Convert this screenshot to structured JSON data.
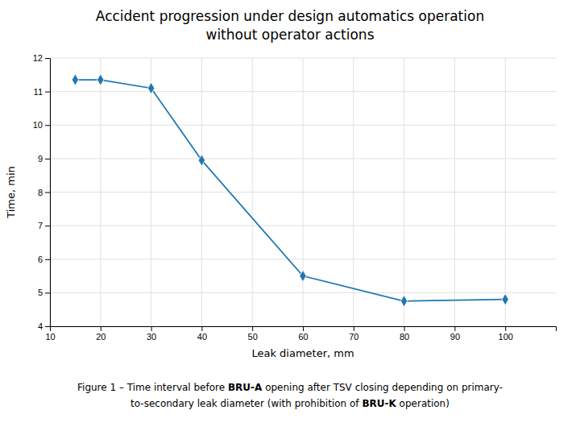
{
  "chart_data": {
    "type": "line",
    "title": "Accident progression under design automatics operation",
    "subtitle": "without operator actions",
    "x": [
      15,
      20,
      30,
      40,
      60,
      80,
      100
    ],
    "values": [
      11.35,
      11.35,
      11.1,
      8.95,
      5.5,
      4.75,
      4.8
    ],
    "x_label": "Leak diameter, mm",
    "y_label": "Time, min",
    "xlim": [
      10,
      110
    ],
    "ylim": [
      4,
      12
    ],
    "xticks": [
      10,
      20,
      30,
      40,
      50,
      60,
      70,
      80,
      90,
      100
    ],
    "yticks": [
      4,
      5,
      6,
      7,
      8,
      9,
      10,
      11,
      12
    ],
    "marker": "diamond",
    "grid": true,
    "annotations": [
      [
        "Figure 1 – Time interval before ",
        "BRU‑A",
        " opening after TSV closing depending on primary-"
      ],
      [
        "to-secondary leak diameter (with prohibition of ",
        "BRU‑K",
        " operation)"
      ]
    ]
  }
}
